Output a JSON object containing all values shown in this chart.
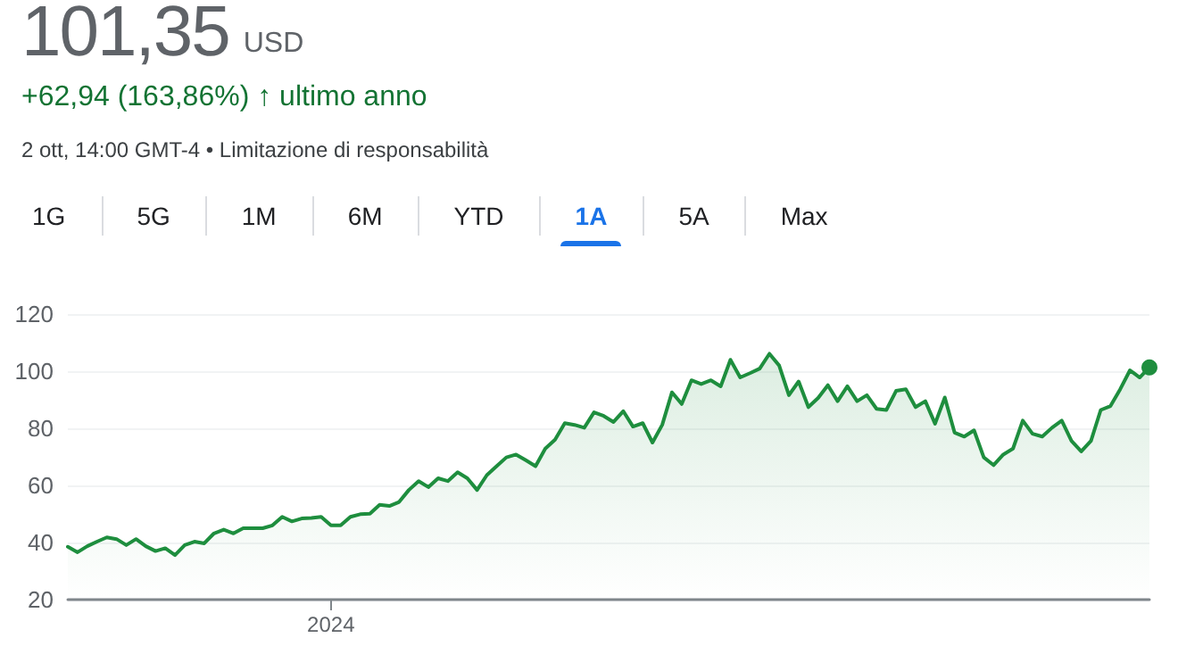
{
  "chart_data": {
    "type": "area",
    "title": "101,35",
    "subtitle": "+62,94 (163,86%) ↑ ultimo anno",
    "annotations": [
      "USD",
      "2 ott, 14:00 GMT-4 • Limitazione di responsabilità",
      "1G",
      "5G",
      "1M",
      "6M",
      "YTD",
      "1A",
      "5A",
      "Max"
    ],
    "categories": [
      null,
      null,
      null,
      null,
      null,
      null,
      null,
      null,
      null,
      null,
      null,
      null,
      null,
      null,
      null,
      null,
      null,
      null,
      null,
      null,
      null,
      null,
      null,
      null,
      null,
      null,
      null,
      "2024",
      null,
      null,
      null,
      null,
      null,
      null,
      null,
      null,
      null,
      null,
      null,
      null,
      null,
      null,
      null,
      null,
      null,
      null,
      null,
      null,
      null,
      null,
      null,
      null,
      null,
      null,
      null,
      null,
      null,
      null,
      null,
      null,
      null,
      null,
      null,
      null,
      null,
      null,
      null,
      null,
      null,
      null,
      null,
      null,
      null,
      null,
      null,
      null,
      null,
      null,
      null,
      null,
      null,
      null,
      null,
      null,
      null,
      null,
      null,
      null,
      null,
      null,
      null,
      null,
      null,
      null,
      null,
      null,
      null,
      null,
      null,
      null,
      null,
      null,
      null,
      null,
      null,
      null,
      null,
      null,
      null,
      null,
      null,
      null
    ],
    "series": [
      {
        "color": "#1e8e3e",
        "values": [
          38.5,
          36.6,
          38.7,
          40.3,
          41.8,
          41.2,
          39.1,
          41.2,
          38.7,
          37,
          38,
          35.6,
          39.1,
          40.3,
          39.7,
          43.2,
          44.5,
          43.2,
          45,
          45,
          45,
          46,
          49,
          47.4,
          48.4,
          48.6,
          49,
          46,
          46,
          49,
          49.9,
          50.1,
          53.2,
          52.8,
          54.2,
          58.4,
          61.5,
          59.4,
          62.5,
          61.5,
          64.6,
          62.5,
          58.4,
          63.6,
          66.7,
          69.8,
          70.8,
          68.8,
          66.7,
          72.9,
          76,
          81.8,
          81.2,
          80.2,
          85.6,
          84.3,
          82.2,
          86,
          80.6,
          81.8,
          75,
          81.2,
          92.6,
          88.5,
          96.8,
          95.5,
          96.8,
          94.7,
          104,
          97.8,
          99.3,
          100.9,
          106.1,
          102,
          91.6,
          96.4,
          87.4,
          90.6,
          95.1,
          89.5,
          94.7,
          89.5,
          91.6,
          86.8,
          86.4,
          93.1,
          93.7,
          87.4,
          89.5,
          81.6,
          90.8,
          78.5,
          77.1,
          79.3,
          69.8,
          67.1,
          70.8,
          72.9,
          82.7,
          78.1,
          77.1,
          80.2,
          82.7,
          75.6,
          71.9,
          75.6,
          86.4,
          87.8,
          93.7,
          100.3,
          97.8,
          101.35
        ]
      }
    ],
    "ylim": [
      20,
      120
    ],
    "yticks": [
      20,
      40,
      60,
      80,
      100,
      120
    ],
    "grid": "y"
  }
}
